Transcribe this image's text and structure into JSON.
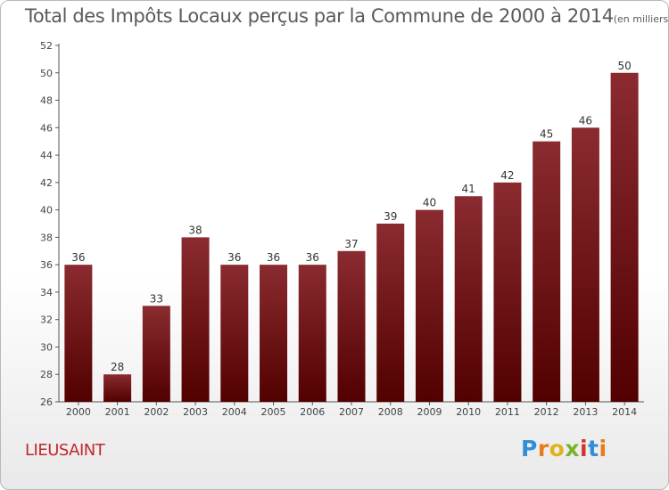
{
  "header": {
    "title": "Total des Impôts Locaux perçus par la Commune de 2000 à 2014",
    "unit": "(en milliers d'€)"
  },
  "footer": {
    "commune": "LIEUSAINT",
    "logo_text": "Proxiti"
  },
  "chart_data": {
    "type": "bar",
    "title": "Total des Impôts Locaux perçus par la Commune de 2000 à 2014",
    "xlabel": "",
    "ylabel": "",
    "ylim": [
      26,
      52
    ],
    "yticks": [
      26,
      28,
      30,
      32,
      34,
      36,
      38,
      40,
      42,
      44,
      46,
      48,
      50,
      52
    ],
    "categories": [
      "2000",
      "2001",
      "2002",
      "2003",
      "2004",
      "2005",
      "2006",
      "2007",
      "2008",
      "2009",
      "2010",
      "2011",
      "2012",
      "2013",
      "2014"
    ],
    "values": [
      36,
      28,
      33,
      38,
      36,
      36,
      36,
      37,
      39,
      40,
      41,
      42,
      45,
      46,
      50
    ],
    "grid": false,
    "colors": {
      "bar_top": "#8a2b30",
      "bar_bottom": "#520000",
      "axis": "#555555"
    }
  }
}
